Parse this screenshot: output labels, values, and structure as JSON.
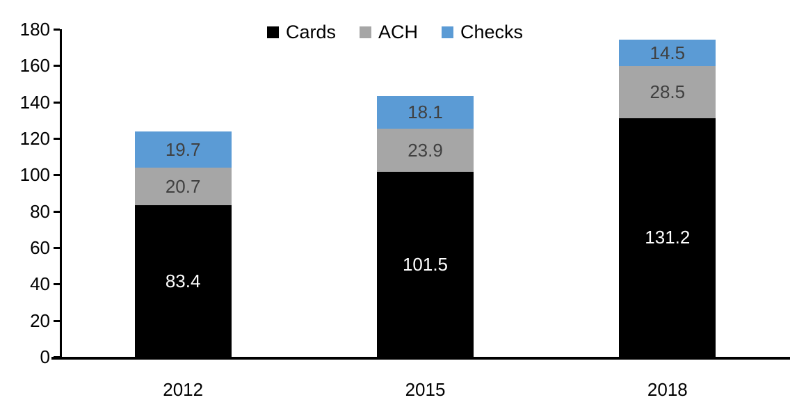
{
  "chart_data": {
    "type": "bar",
    "stacked": true,
    "title": "",
    "xlabel": "",
    "ylabel": "",
    "categories": [
      "2012",
      "2015",
      "2018"
    ],
    "series": [
      {
        "name": "Cards",
        "color": "#000000",
        "label_color": "#ffffff",
        "values": [
          83.4,
          101.5,
          131.2
        ]
      },
      {
        "name": "ACH",
        "color": "#a6a6a6",
        "label_color": "#404040",
        "values": [
          20.7,
          23.9,
          28.5
        ]
      },
      {
        "name": "Checks",
        "color": "#5b9bd5",
        "label_color": "#404040",
        "values": [
          19.7,
          18.1,
          14.5
        ]
      }
    ],
    "totals": [
      123.8,
      143.5,
      174.2
    ],
    "ylim": [
      0,
      180
    ],
    "yticks": [
      0,
      20,
      40,
      60,
      80,
      100,
      120,
      140,
      160,
      180
    ],
    "grid": false,
    "legend_position": "top-center",
    "axis_color": "#000000",
    "tick_label_color": "#000000",
    "value_label_decimals": 1
  }
}
